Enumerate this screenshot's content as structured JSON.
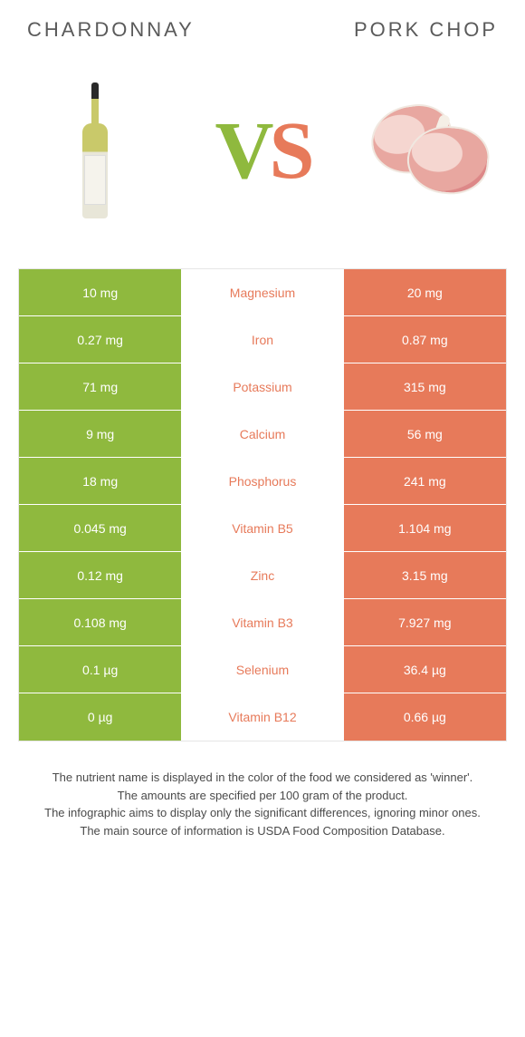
{
  "titles": {
    "left": "CHARDONNAY",
    "right": "PORK CHOP"
  },
  "vs": {
    "v": "V",
    "s": "S"
  },
  "colors": {
    "left_bg": "#8fb93e",
    "right_bg": "#e77a5a",
    "mid_left_text": "#8fb93e",
    "mid_right_text": "#e77a5a"
  },
  "rows": [
    {
      "left": "10 mg",
      "label": "Magnesium",
      "right": "20 mg",
      "winner": "right"
    },
    {
      "left": "0.27 mg",
      "label": "Iron",
      "right": "0.87 mg",
      "winner": "right"
    },
    {
      "left": "71 mg",
      "label": "Potassium",
      "right": "315 mg",
      "winner": "right"
    },
    {
      "left": "9 mg",
      "label": "Calcium",
      "right": "56 mg",
      "winner": "right"
    },
    {
      "left": "18 mg",
      "label": "Phosphorus",
      "right": "241 mg",
      "winner": "right"
    },
    {
      "left": "0.045 mg",
      "label": "Vitamin B5",
      "right": "1.104 mg",
      "winner": "right"
    },
    {
      "left": "0.12 mg",
      "label": "Zinc",
      "right": "3.15 mg",
      "winner": "right"
    },
    {
      "left": "0.108 mg",
      "label": "Vitamin B3",
      "right": "7.927 mg",
      "winner": "right"
    },
    {
      "left": "0.1 µg",
      "label": "Selenium",
      "right": "36.4 µg",
      "winner": "right"
    },
    {
      "left": "0 µg",
      "label": "Vitamin B12",
      "right": "0.66 µg",
      "winner": "right"
    }
  ],
  "footer": {
    "l1": "The nutrient name is displayed in the color of the food we considered as 'winner'.",
    "l2": "The amounts are specified per 100 gram of the product.",
    "l3": "The infographic aims to display only the significant differences, ignoring minor ones.",
    "l4": "The main source of information is USDA Food Composition Database."
  }
}
